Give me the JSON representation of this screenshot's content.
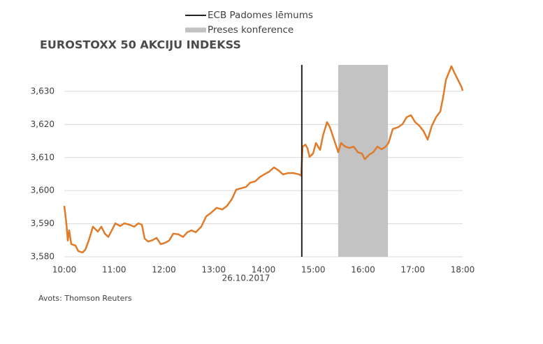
{
  "chart_data": {
    "type": "line",
    "title": "EUROSTOXX 50 AKCIJU INDEKSS",
    "xlabel": "26.10.2017",
    "source": "Avots: Thomson Reuters",
    "color": "#e07b2a",
    "x": [
      10,
      10.042,
      10.07,
      10.098,
      10.14,
      10.225,
      10.281,
      10.365,
      10.421,
      10.491,
      10.575,
      10.674,
      10.744,
      10.814,
      10.884,
      10.954,
      11.025,
      11.123,
      11.207,
      11.305,
      11.404,
      11.488,
      11.558,
      11.614,
      11.684,
      11.768,
      11.853,
      11.937,
      12.021,
      12.105,
      12.189,
      12.288,
      12.386,
      12.47,
      12.554,
      12.639,
      12.751,
      12.849,
      12.947,
      13.06,
      13.172,
      13.27,
      13.368,
      13.453,
      13.551,
      13.649,
      13.733,
      13.832,
      13.93,
      14.014,
      14.112,
      14.211,
      14.295,
      14.393,
      14.491,
      14.604,
      14.716,
      14.758,
      14.786,
      14.842,
      14.884,
      14.926,
      14.996,
      15.053,
      15.137,
      15.193,
      15.277,
      15.333,
      15.418,
      15.502,
      15.558,
      15.642,
      15.726,
      15.811,
      15.895,
      15.979,
      16.035,
      16.119,
      16.204,
      16.288,
      16.372,
      16.456,
      16.512,
      16.596,
      16.709,
      16.793,
      16.877,
      16.961,
      17.046,
      17.13,
      17.214,
      17.298,
      17.382,
      17.467,
      17.551,
      17.607,
      17.663,
      17.719,
      17.775,
      17.839,
      17.909,
      17.979,
      18
    ],
    "values": [
      3595.4,
      3590.1,
      3584.9,
      3588,
      3583.8,
      3583.4,
      3581.7,
      3581.3,
      3582.1,
      3584.9,
      3589.1,
      3587.6,
      3589.1,
      3587,
      3586,
      3588,
      3590.1,
      3589.3,
      3590.1,
      3589.7,
      3589.1,
      3590.1,
      3589.7,
      3585.5,
      3584.6,
      3585,
      3585.7,
      3583.8,
      3584.2,
      3584.9,
      3587,
      3586.8,
      3586,
      3587.4,
      3588,
      3587.4,
      3589.1,
      3592.2,
      3593.3,
      3594.8,
      3594.3,
      3595.4,
      3597.5,
      3600.3,
      3600.7,
      3601.1,
      3602.4,
      3602.8,
      3604.1,
      3604.9,
      3605.7,
      3607,
      3606.2,
      3604.9,
      3605.3,
      3605.3,
      3604.9,
      3604.5,
      3613.3,
      3613.9,
      3612.8,
      3610.2,
      3611.2,
      3614.4,
      3612.3,
      3616.5,
      3620.7,
      3619.2,
      3615.4,
      3611.6,
      3614.4,
      3613.3,
      3612.9,
      3613.3,
      3611.6,
      3611.2,
      3609.5,
      3610.8,
      3611.6,
      3613.3,
      3612.5,
      3613.3,
      3614.4,
      3618.6,
      3619.2,
      3620.1,
      3622.2,
      3622.8,
      3620.7,
      3619.6,
      3618,
      3615.4,
      3619.6,
      3622.2,
      3623.9,
      3628.1,
      3633.4,
      3635.5,
      3637.6,
      3635.5,
      3633.4,
      3631.3,
      3630.2
    ],
    "xlim": [
      10,
      18
    ],
    "xticks": [
      {
        "value": 10,
        "label": "10:00"
      },
      {
        "value": 11,
        "label": "11:00"
      },
      {
        "value": 12,
        "label": "12:00"
      },
      {
        "value": 13,
        "label": "13:00"
      },
      {
        "value": 14,
        "label": "14:00"
      },
      {
        "value": 15,
        "label": "15:00"
      },
      {
        "value": 16,
        "label": "16:00"
      },
      {
        "value": 17,
        "label": "17:00"
      },
      {
        "value": 18,
        "label": "18:00"
      }
    ],
    "ylim": [
      3580,
      3638
    ],
    "yticks": [
      {
        "value": 3580,
        "label": "3,580"
      },
      {
        "value": 3590,
        "label": "3,590"
      },
      {
        "value": 3600,
        "label": "3,600"
      },
      {
        "value": 3610,
        "label": "3,610"
      },
      {
        "value": 3620,
        "label": "3,620"
      },
      {
        "value": 3630,
        "label": "3,630"
      }
    ],
    "grid": true,
    "annotations": [
      {
        "type": "vline",
        "x": 14.77,
        "label": "ECB Padomes lēmums",
        "color": "#222222"
      },
      {
        "type": "span",
        "x": [
          15.5,
          16.5
        ],
        "label": "Preses konference",
        "color": "#c3c3c3"
      }
    ]
  }
}
